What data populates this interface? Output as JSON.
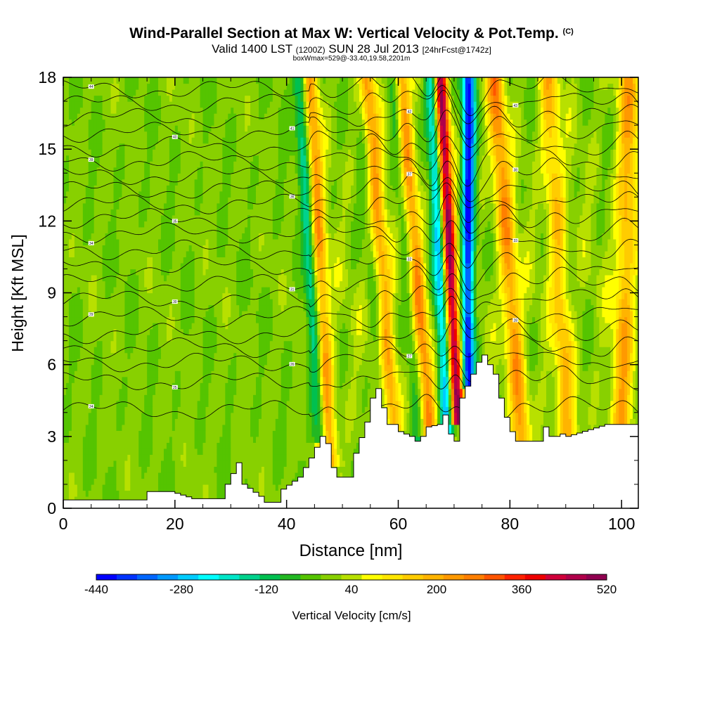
{
  "title": {
    "main": "Wind-Parallel Section at Max W: Vertical Velocity & Pot.Temp.",
    "copyright": "(C)",
    "valid_prefix": "Valid 1400 LST",
    "utc": "(1200Z)",
    "date": "SUN 28 Jul 2013",
    "forecast": "[24hrFcst@1742z]",
    "box_info": "boxWmax=529@-33.40,19.58,2201m"
  },
  "chart_data": {
    "type": "heatmap",
    "xlabel": "Distance [nm]",
    "ylabel": "Height [Kft MSL]",
    "xlim": [
      0,
      103
    ],
    "ylim": [
      0,
      18
    ],
    "x_ticks": [
      "0",
      "20",
      "40",
      "60",
      "80",
      "100"
    ],
    "x_tick_values": [
      0,
      20,
      40,
      60,
      80,
      100
    ],
    "y_ticks": [
      "0",
      "3",
      "6",
      "9",
      "12",
      "15",
      "18"
    ],
    "y_tick_values": [
      0,
      3,
      6,
      9,
      12,
      15,
      18
    ],
    "colorbar": {
      "label": "Vertical Velocity [cm/s]",
      "min": -440,
      "max": 520,
      "step": 40,
      "tick_labels": [
        "-440",
        "-280",
        "-120",
        "40",
        "200",
        "360",
        "520"
      ],
      "tick_values": [
        -440,
        -280,
        -120,
        40,
        200,
        360,
        520
      ],
      "colors": [
        "#0000ff",
        "#0033ff",
        "#0066ff",
        "#0099ff",
        "#00ccff",
        "#00ffff",
        "#00e6c8",
        "#00d28c",
        "#00c050",
        "#22b822",
        "#55c400",
        "#88d000",
        "#b8e000",
        "#ffff00",
        "#ffe600",
        "#ffcc00",
        "#ffb400",
        "#ff9900",
        "#ff7f00",
        "#ff5500",
        "#ff2200",
        "#ee0000",
        "#d0003a",
        "#b0004a",
        "#900050"
      ]
    },
    "terrain_kft": [
      [
        0,
        0.35
      ],
      [
        14,
        0.35
      ],
      [
        15,
        0.7
      ],
      [
        19,
        0.7
      ],
      [
        23,
        0.4
      ],
      [
        28,
        0.4
      ],
      [
        29,
        1.0
      ],
      [
        31,
        1.9
      ],
      [
        32,
        1.0
      ],
      [
        35,
        0.5
      ],
      [
        36,
        0.25
      ],
      [
        38,
        0.25
      ],
      [
        39,
        0.8
      ],
      [
        42,
        1.3
      ],
      [
        44,
        2.1
      ],
      [
        46,
        3.0
      ],
      [
        47,
        2.7
      ],
      [
        48,
        1.7
      ],
      [
        49,
        1.3
      ],
      [
        51,
        1.3
      ],
      [
        52,
        2.3
      ],
      [
        54,
        3.6
      ],
      [
        55,
        4.6
      ],
      [
        56,
        5.0
      ],
      [
        57,
        4.2
      ],
      [
        58,
        3.5
      ],
      [
        59,
        3.5
      ],
      [
        60,
        3.2
      ],
      [
        62,
        3.0
      ],
      [
        63,
        2.8
      ],
      [
        64,
        3.0
      ],
      [
        65,
        3.4
      ],
      [
        67,
        3.5
      ],
      [
        68,
        3.9
      ],
      [
        69,
        3.1
      ],
      [
        70,
        2.8
      ],
      [
        71,
        4.6
      ],
      [
        73,
        5.6
      ],
      [
        74,
        6.1
      ],
      [
        75,
        6.4
      ],
      [
        77,
        5.6
      ],
      [
        78,
        4.6
      ],
      [
        79,
        3.8
      ],
      [
        80,
        3.2
      ],
      [
        81,
        2.8
      ],
      [
        85,
        2.8
      ],
      [
        86,
        3.4
      ],
      [
        87,
        3.0
      ],
      [
        88,
        3.0
      ],
      [
        89,
        3.1
      ],
      [
        90,
        3.0
      ],
      [
        97,
        3.5
      ],
      [
        103,
        3.5
      ]
    ],
    "updrafts": [
      {
        "x_base": 47.6,
        "x_top": 44.0,
        "peak_cm_s": 260,
        "width_nm": 1.5
      },
      {
        "x_base": 59.0,
        "x_top": 54.3,
        "peak_cm_s": 230,
        "width_nm": 1.6
      },
      {
        "x_base": 65.5,
        "x_top": 60.5,
        "peak_cm_s": 250,
        "width_nm": 1.4
      },
      {
        "x_base": 70.6,
        "x_top": 67.5,
        "peak_cm_s": 520,
        "width_nm": 1.2
      },
      {
        "x_base": 82.2,
        "x_top": 77.2,
        "peak_cm_s": 240,
        "width_nm": 1.6
      },
      {
        "x_base": 90.5,
        "x_top": 86.8,
        "peak_cm_s": 170,
        "width_nm": 1.7
      },
      {
        "x_base": 100.0,
        "x_top": 101.5,
        "peak_cm_s": 200,
        "width_nm": 1.8
      }
    ],
    "downdrafts": [
      {
        "x_base": 46.1,
        "x_top": 42.5,
        "peak_cm_s": -220,
        "width_nm": 1.2
      },
      {
        "x_base": 68.8,
        "x_top": 66.0,
        "peak_cm_s": -300,
        "width_nm": 1.2
      },
      {
        "x_base": 72.5,
        "x_top": 72.6,
        "peak_cm_s": -440,
        "width_nm": 1.1
      },
      {
        "x_base": 57.5,
        "x_top": 53.0,
        "peak_cm_s": -90,
        "width_nm": 1.2
      },
      {
        "x_base": 63.8,
        "x_top": 59.0,
        "peak_cm_s": -90,
        "width_nm": 1.2
      }
    ],
    "theta_contours": [
      {
        "base_kft": 4.1,
        "label": "24"
      },
      {
        "base_kft": 5.3,
        "label": "25"
      },
      {
        "base_kft": 6.1,
        "label": "26"
      },
      {
        "base_kft": 6.7,
        "label": "27"
      },
      {
        "base_kft": 7.3,
        "label": "28"
      },
      {
        "base_kft": 8.0,
        "label": "29"
      },
      {
        "base_kft": 8.7,
        "label": "30"
      },
      {
        "base_kft": 9.4,
        "label": "31"
      },
      {
        "base_kft": 10.1,
        "label": "32"
      },
      {
        "base_kft": 10.8,
        "label": "33"
      },
      {
        "base_kft": 11.5,
        "label": "34"
      },
      {
        "base_kft": 12.1,
        "label": "35"
      },
      {
        "base_kft": 12.7,
        "label": "36"
      },
      {
        "base_kft": 13.3,
        "label": "37"
      },
      {
        "base_kft": 13.9,
        "label": "38"
      },
      {
        "base_kft": 14.5,
        "label": "39"
      },
      {
        "base_kft": 15.1,
        "label": "40"
      },
      {
        "base_kft": 15.7,
        "label": "41"
      },
      {
        "base_kft": 16.3,
        "label": "42"
      },
      {
        "base_kft": 16.9,
        "label": "43"
      },
      {
        "base_kft": 17.5,
        "label": "44"
      }
    ]
  }
}
